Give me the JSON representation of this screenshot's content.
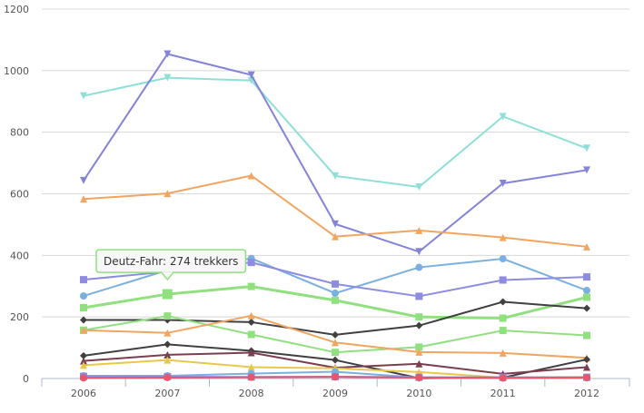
{
  "chart_data": {
    "type": "line",
    "title": "",
    "xlabel": "",
    "ylabel": "",
    "x": [
      "2006",
      "2007",
      "2008",
      "2009",
      "2010",
      "2011",
      "2012"
    ],
    "ylim": [
      0,
      1200
    ],
    "yticks": [
      0,
      200,
      400,
      600,
      800,
      1000,
      1200
    ],
    "grid": true,
    "legend": "none",
    "series": [
      {
        "color": "#8fdfd9",
        "marker": "triangle-down",
        "values": [
          918,
          977,
          968,
          658,
          622,
          851,
          748
        ]
      },
      {
        "color": "#8383d8",
        "marker": "triangle-down",
        "values": [
          643,
          1054,
          986,
          502,
          412,
          634,
          677
        ]
      },
      {
        "color": "#f0a561",
        "marker": "triangle",
        "values": [
          583,
          601,
          659,
          461,
          481,
          458,
          428
        ]
      },
      {
        "color": "#7ab0e0",
        "marker": "circle",
        "values": [
          268,
          352,
          390,
          277,
          361,
          389,
          286
        ]
      },
      {
        "color": "#8c8ce0",
        "marker": "square",
        "values": [
          321,
          347,
          377,
          307,
          267,
          320,
          330
        ]
      },
      {
        "color": "#90e07f",
        "marker": "square",
        "values": [
          230,
          274,
          299,
          254,
          200,
          196,
          264
        ],
        "emphasis": true
      },
      {
        "color": "#404040",
        "marker": "diamond",
        "values": [
          190,
          190,
          183,
          142,
          172,
          249,
          228
        ]
      },
      {
        "color": "#90e07f",
        "marker": "square",
        "values": [
          157,
          203,
          143,
          85,
          102,
          156,
          140
        ]
      },
      {
        "color": "#f0a561",
        "marker": "triangle",
        "values": [
          157,
          148,
          204,
          117,
          86,
          83,
          67
        ]
      },
      {
        "color": "#404040",
        "marker": "diamond",
        "values": [
          74,
          111,
          90,
          60,
          1,
          3,
          62
        ]
      },
      {
        "color": "#7a3e50",
        "marker": "triangle",
        "values": [
          57,
          77,
          84,
          35,
          48,
          15,
          37
        ]
      },
      {
        "color": "#e8c84a",
        "marker": "triangle",
        "values": [
          43,
          60,
          37,
          33,
          21,
          3,
          5
        ]
      },
      {
        "color": "#7ab0e0",
        "marker": "circle",
        "values": [
          9,
          9,
          16,
          22,
          3,
          1,
          2
        ]
      },
      {
        "color": "#8c8ce0",
        "marker": "square",
        "values": [
          7,
          6,
          5,
          6,
          4,
          4,
          4
        ]
      },
      {
        "color": "#e8566a",
        "marker": "circle",
        "values": [
          2,
          3,
          4,
          5,
          3,
          2,
          3
        ]
      }
    ],
    "tooltip": {
      "text": "Deutz-Fahr: 274 trekkers",
      "series_index": 5,
      "point_index": 1
    }
  }
}
